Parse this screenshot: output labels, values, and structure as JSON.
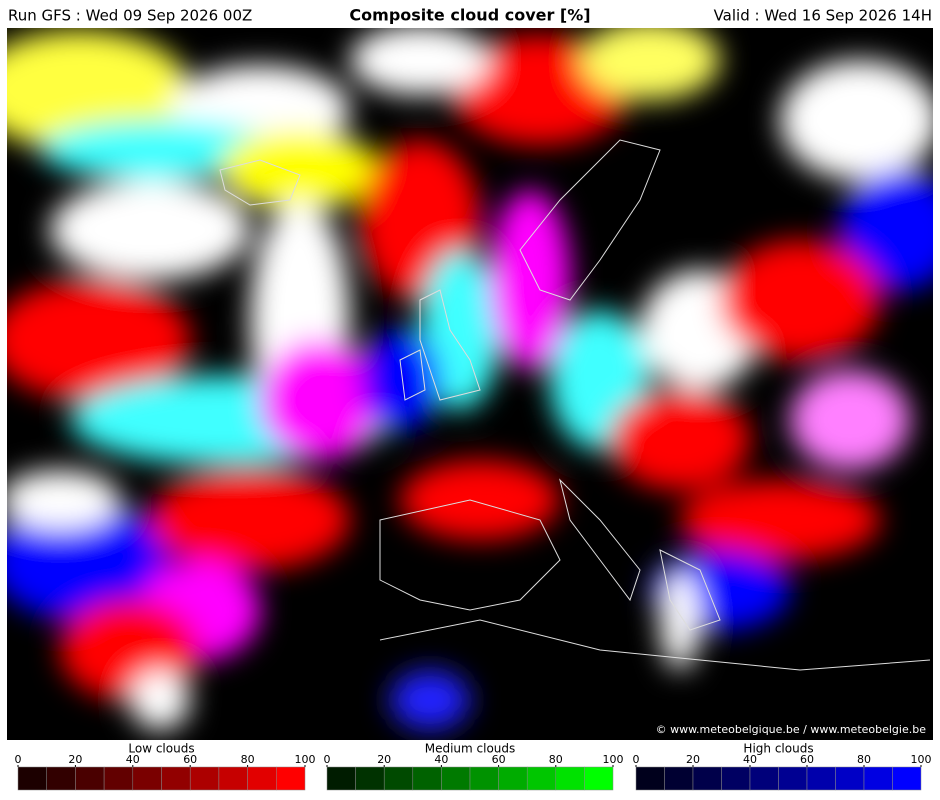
{
  "header": {
    "run": "Run GFS : Wed 09 Sep 2026 00Z",
    "title": "Composite cloud cover [%]",
    "valid": "Valid : Wed 16 Sep 2026 14H"
  },
  "map": {
    "credit": "© www.meteobelgique.be / www.meteobelgie.be"
  },
  "legends": [
    {
      "title": "Low clouds",
      "ticks": [
        0,
        20,
        40,
        60,
        80,
        100
      ],
      "colors": [
        "#1c0000",
        "#320000",
        "#4a0000",
        "#620000",
        "#7a0000",
        "#920000",
        "#ac0000",
        "#c60000",
        "#e20000",
        "#ff0000"
      ]
    },
    {
      "title": "Medium clouds",
      "ticks": [
        0,
        20,
        40,
        60,
        80,
        100
      ],
      "colors": [
        "#001c00",
        "#003200",
        "#004a00",
        "#006200",
        "#007a00",
        "#009200",
        "#00ac00",
        "#00c600",
        "#00e200",
        "#00ff00"
      ]
    },
    {
      "title": "High clouds",
      "ticks": [
        0,
        20,
        40,
        60,
        80,
        100
      ],
      "colors": [
        "#00001c",
        "#000032",
        "#00004a",
        "#000062",
        "#00007a",
        "#000092",
        "#0000ac",
        "#0000c6",
        "#0000e2",
        "#0000ff"
      ]
    }
  ]
}
